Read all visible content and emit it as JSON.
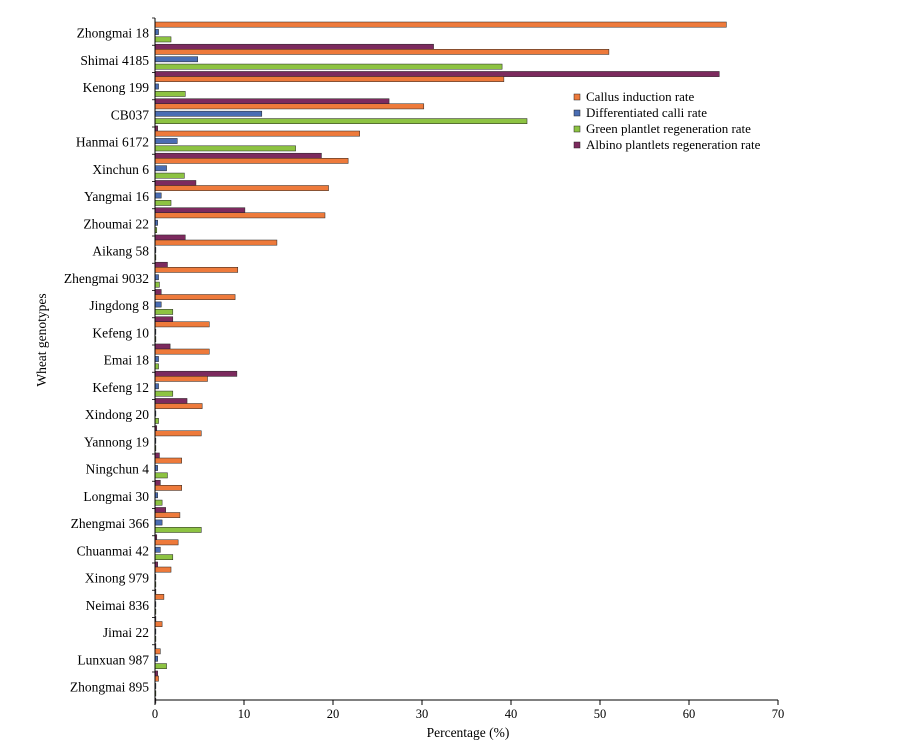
{
  "chart_data": {
    "type": "bar",
    "orientation": "horizontal",
    "xlabel": "Percentage (%)",
    "ylabel": "Wheat genotypes",
    "xlim": [
      0,
      70
    ],
    "xticks": [
      0,
      10,
      20,
      30,
      40,
      50,
      60,
      70
    ],
    "grid": false,
    "legend_position": "right",
    "categories": [
      "Zhongmai 18",
      "Shimai 4185",
      "Kenong 199",
      "CB037",
      "Hanmai 6172",
      "Xinchun 6",
      "Yangmai 16",
      "Zhoumai 22",
      "Aikang 58",
      "Zhengmai 9032",
      "Jingdong 8",
      "Kefeng 10",
      "Emai 18",
      "Kefeng 12",
      "Xindong 20",
      "Yannong 19",
      "Ningchun 4",
      "Longmai 30",
      "Zhengmai 366",
      "Chuanmai 42",
      "Xinong 979",
      "Neimai 836",
      "Jimai 22",
      "Lunxuan 987",
      "Zhongmai 895"
    ],
    "series": [
      {
        "name": "Callus induction rate",
        "color": "#ee7a3b",
        "values": [
          64.2,
          51.0,
          39.2,
          30.2,
          23.0,
          21.7,
          19.5,
          19.1,
          13.7,
          9.3,
          9.0,
          6.1,
          6.1,
          5.9,
          5.3,
          5.2,
          3.0,
          3.0,
          2.8,
          2.6,
          1.8,
          1.0,
          0.8,
          0.6,
          0.4
        ]
      },
      {
        "name": "Differentiated calli rate",
        "color": "#4a6db3",
        "values": [
          0.4,
          4.8,
          0.4,
          12.0,
          2.5,
          1.3,
          0.7,
          0.3,
          0.1,
          0.4,
          0.7,
          0.1,
          0.4,
          0.4,
          0.1,
          0.1,
          0.3,
          0.3,
          0.8,
          0.6,
          0.1,
          0.1,
          0.1,
          0.3,
          0.1
        ]
      },
      {
        "name": "Green plantlet regeneration rate",
        "color": "#8dc342",
        "values": [
          1.8,
          39.0,
          3.4,
          41.8,
          15.8,
          3.3,
          1.8,
          0.2,
          0.1,
          0.5,
          2.0,
          0.1,
          0.4,
          2.0,
          0.4,
          0.1,
          1.4,
          0.8,
          5.2,
          2.0,
          0.1,
          0.1,
          0.1,
          1.3,
          0.1
        ]
      },
      {
        "name": "Albino plantlets regeneration rate",
        "color": "#7c2a5e",
        "values": [
          31.3,
          63.4,
          26.3,
          0.3,
          18.7,
          4.6,
          10.1,
          3.4,
          1.4,
          0.7,
          2.0,
          1.7,
          9.2,
          3.6,
          0.2,
          0.5,
          0.6,
          1.2,
          0.2,
          0.3,
          0.1,
          0.1,
          0.1,
          0.3,
          0.1
        ]
      }
    ]
  }
}
